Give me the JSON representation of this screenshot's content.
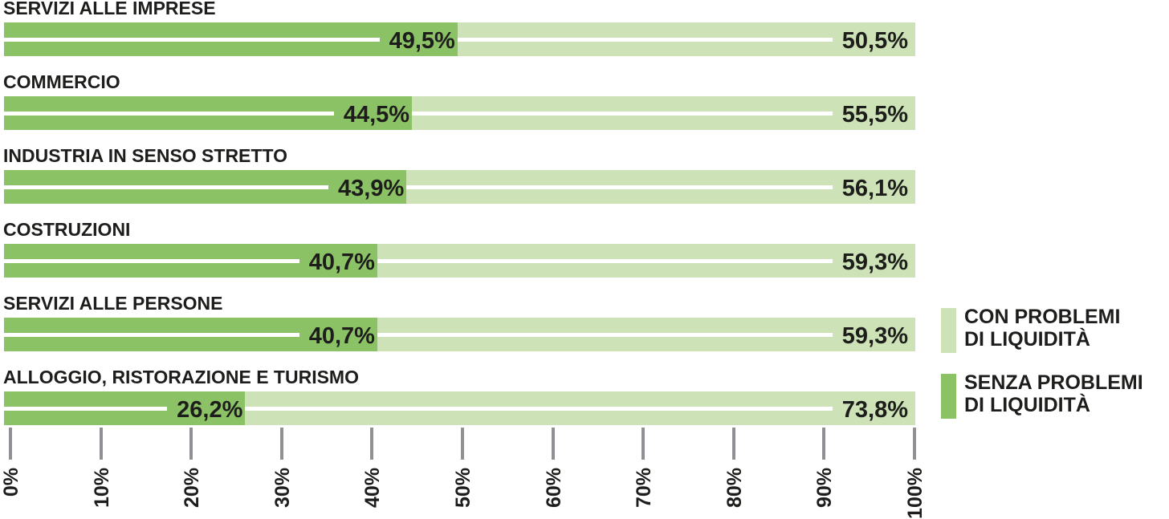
{
  "chart_data": {
    "type": "bar",
    "variant": "horizontal-stacked",
    "title": "",
    "categories": [
      "SERVIZI ALLE IMPRESE",
      "COMMERCIO",
      "INDUSTRIA IN SENSO STRETTO",
      "COSTRUZIONI",
      "SERVIZI ALLE PERSONE",
      "ALLOGGIO, RISTORAZIONE E TURISMO"
    ],
    "series": [
      {
        "name": "SENZA PROBLEMI DI LIQUIDITÀ",
        "color": "#8CC266",
        "values": [
          49.5,
          44.5,
          43.9,
          40.7,
          40.7,
          26.2
        ]
      },
      {
        "name": "CON PROBLEMI DI LIQUIDITÀ",
        "color": "#CDE3B7",
        "values": [
          50.5,
          55.5,
          56.1,
          59.3,
          59.3,
          73.8
        ]
      }
    ],
    "value_labels": [
      {
        "left": "49,5%",
        "right": "50,5%"
      },
      {
        "left": "44,5%",
        "right": "55,5%"
      },
      {
        "left": "43,9%",
        "right": "56,1%"
      },
      {
        "left": "40,7%",
        "right": "59,3%"
      },
      {
        "left": "40,7%",
        "right": "59,3%"
      },
      {
        "left": "26,2%",
        "right": "73,8%"
      }
    ],
    "xlim": [
      0,
      100
    ],
    "x_ticks": [
      "0%",
      "10%",
      "20%",
      "30%",
      "40%",
      "50%",
      "60%",
      "70%",
      "80%",
      "90%",
      "100%"
    ],
    "grid": false,
    "legend_position": "right"
  },
  "legend": {
    "items": [
      {
        "line1": "CON PROBLEMI",
        "line2": "DI LIQUIDITÀ",
        "color": "#CDE3B7"
      },
      {
        "line1": "SENZA PROBLEMI",
        "line2": "DI LIQUIDITÀ",
        "color": "#8CC266"
      }
    ]
  },
  "colors": {
    "bar_senza_problemi": "#8CC266",
    "bar_con_problemi": "#CDE3B7",
    "tick": "#919195",
    "text": "#1D1D1B",
    "separator_line": "#FFFFFF",
    "background": "#FFFFFF"
  }
}
